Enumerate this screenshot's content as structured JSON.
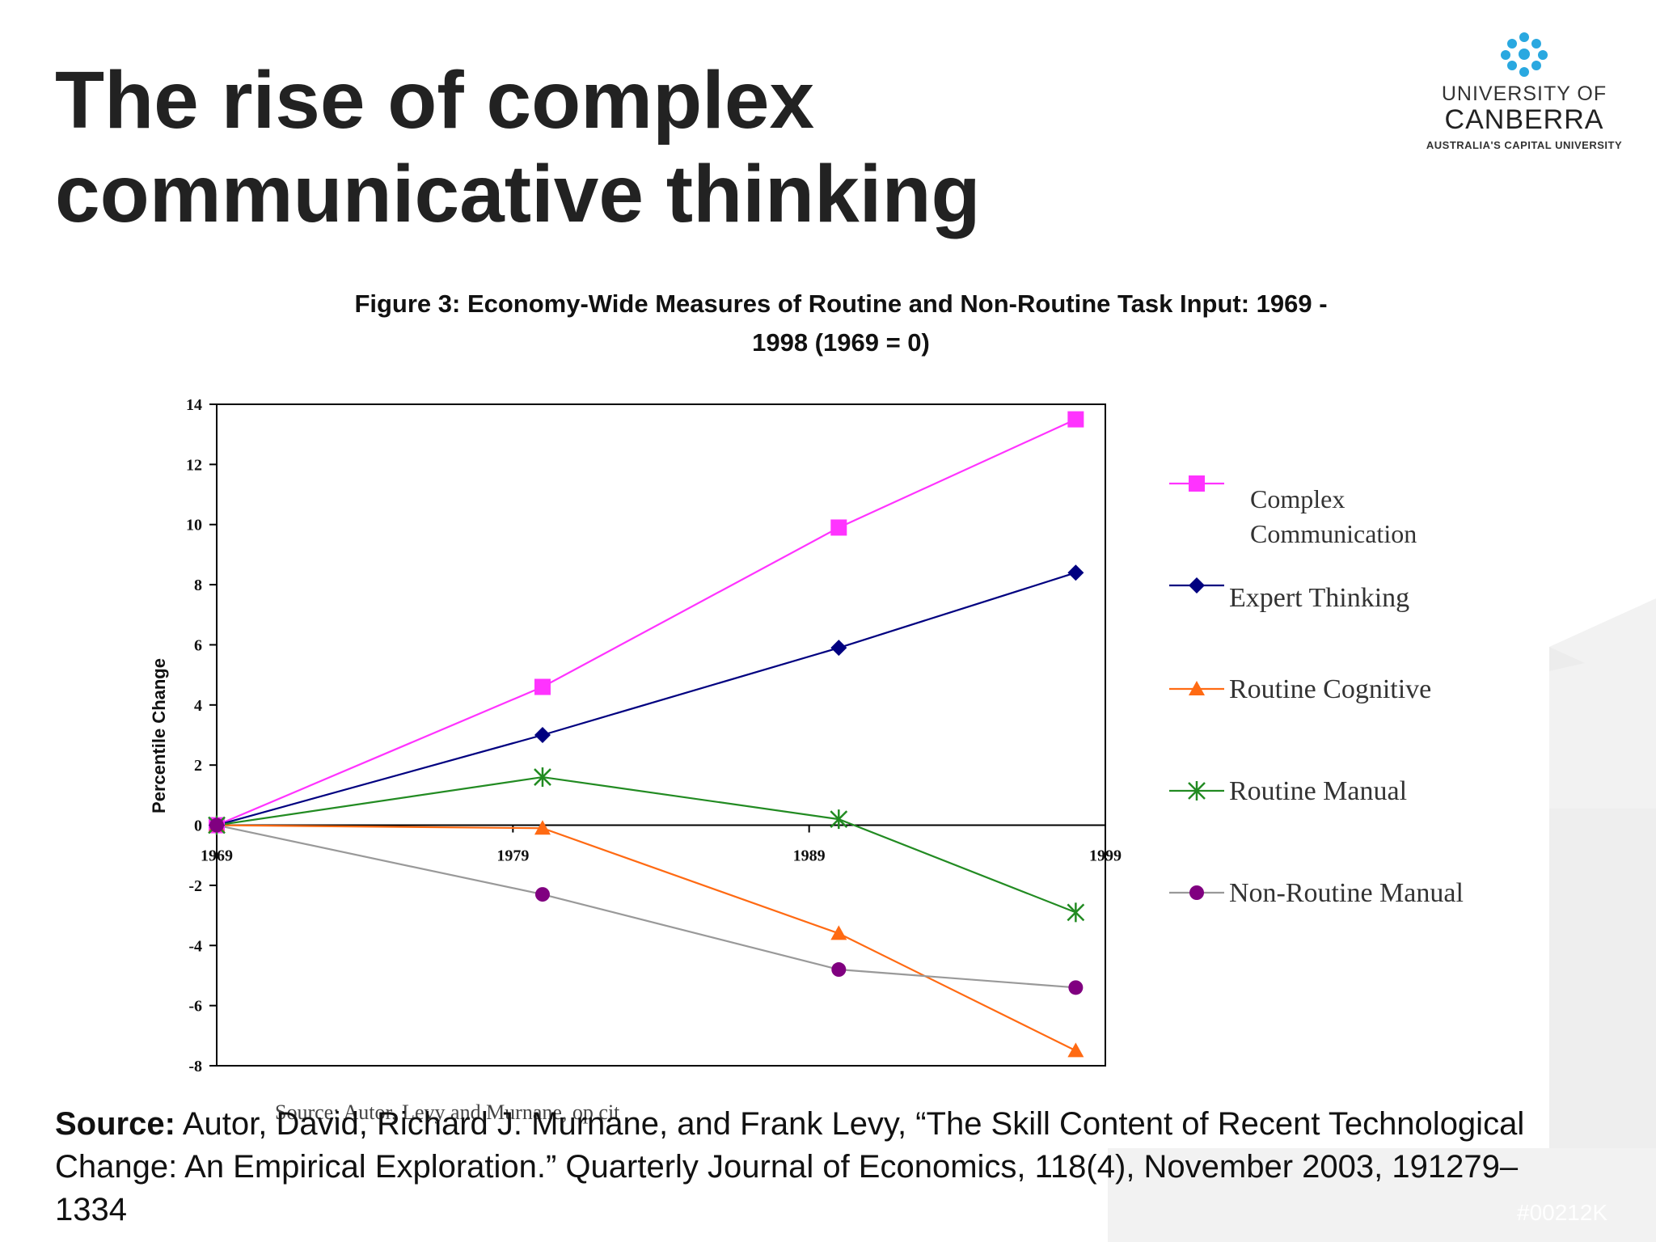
{
  "slide": {
    "title_line1": "The rise of complex",
    "title_line2": "communicative thinking"
  },
  "logo": {
    "line1": "UNIVERSITY OF",
    "line2": "CANBERRA",
    "line3": "AUSTRALIA'S CAPITAL UNIVERSITY",
    "icon": "snowflake-logo-icon",
    "color": "#29a8e0"
  },
  "figure": {
    "caption_line1": "Figure 3: Economy-Wide Measures of Routine and Non-Routine Task Input: 1969 -",
    "caption_line2": "1998 (1969 = 0)",
    "chart_source_note": "Source: Autor, Levy and Murnane, op cit"
  },
  "chart_data": {
    "type": "line",
    "title": "Figure 3: Economy-Wide Measures of Routine and Non-Routine Task Input: 1969 - 1998 (1969 = 0)",
    "xlabel": "",
    "ylabel": "Percentile Change",
    "xlim": [
      1969,
      1999
    ],
    "ylim": [
      -8,
      14
    ],
    "x_ticks": [
      1969,
      1979,
      1989,
      1999
    ],
    "y_ticks": [
      14,
      12,
      10,
      8,
      6,
      4,
      2,
      0,
      -2,
      -4,
      -6,
      -8
    ],
    "x_ticks_labels": [
      "1969",
      "1979",
      "1989",
      "1999"
    ],
    "y_ticks_labels": [
      "14",
      "12",
      "10",
      "8",
      "6",
      "4",
      "2",
      "0",
      "-2",
      "-4",
      "-6",
      "-8"
    ],
    "grid": false,
    "legend_position": "right",
    "series": [
      {
        "name": "Complex Communication",
        "color": "#ff33ff",
        "marker": "square",
        "x": [
          1969,
          1980,
          1990,
          1998
        ],
        "y": [
          0,
          4.6,
          9.9,
          13.5
        ]
      },
      {
        "name": "Expert Thinking",
        "color": "#000080",
        "marker": "diamond",
        "x": [
          1969,
          1980,
          1990,
          1998
        ],
        "y": [
          0,
          3.0,
          5.9,
          8.4
        ]
      },
      {
        "name": "Routine Cognitive",
        "color": "#ff6a13",
        "marker": "triangle",
        "x": [
          1969,
          1980,
          1990,
          1998
        ],
        "y": [
          0,
          -0.1,
          -3.6,
          -7.5
        ]
      },
      {
        "name": "Routine Manual",
        "color": "#228b22",
        "marker": "star",
        "x": [
          1969,
          1980,
          1990,
          1998
        ],
        "y": [
          0,
          1.6,
          0.2,
          -2.9
        ]
      },
      {
        "name": "Non-Routine Manual",
        "color": "#800080",
        "marker": "circle",
        "line_color": "#999999",
        "x": [
          1969,
          1980,
          1990,
          1998
        ],
        "y": [
          0,
          -2.3,
          -4.8,
          -5.4
        ]
      }
    ]
  },
  "source": {
    "label": "Source:",
    "text": " Autor, David, Richard J. Murnane, and Frank Levy, “The Skill Content of Recent Technological Change: An Empirical Exploration.” Quarterly Journal of Economics, 118(4), November 2003, 191279–1334"
  },
  "watermark": "#00212K"
}
